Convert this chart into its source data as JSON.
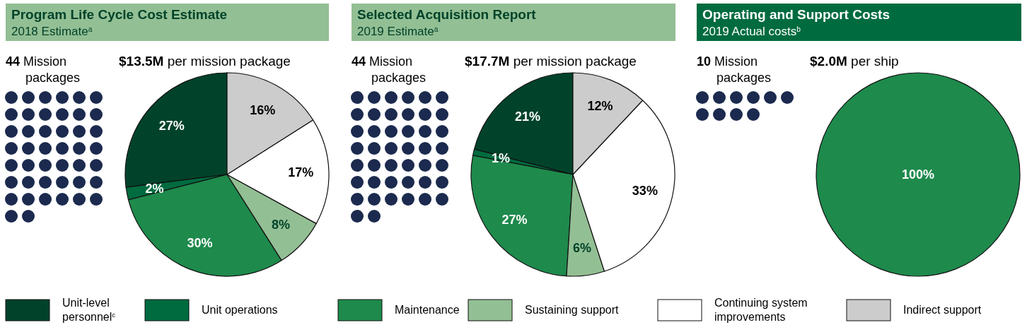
{
  "chart_data": [
    {
      "type": "pie",
      "title": "Program Life Cycle Cost Estimate",
      "subtitle": "2018 Estimate$^{a}$",
      "annotations": [
        "44 Mission packages",
        "$13.5M per mission package"
      ],
      "categories": [
        "Unit-level personnel$^{c}$",
        "Unit operations",
        "Maintenance",
        "Sustaining support",
        "Continuing system improvements",
        "Indirect support"
      ],
      "values": [
        27,
        2,
        30,
        8,
        17,
        16
      ],
      "value_labels": [
        "27%",
        "2%",
        "30%",
        "8%",
        "17%",
        "16%"
      ],
      "colors": [
        "#00432a",
        "#006b3f",
        "#1e8a4c",
        "#93bf94",
        "#ffffff",
        "#cccccc"
      ],
      "legend": "bottom"
    },
    {
      "type": "pie",
      "title": "Selected Acquisition Report",
      "subtitle": "2019 Estimate$^{a}$",
      "annotations": [
        "44 Mission packages",
        "$17.7M per mission package"
      ],
      "categories": [
        null,
        null,
        null,
        null,
        null,
        null
      ],
      "values": [
        21,
        1,
        27,
        6,
        33,
        12
      ],
      "value_labels": [
        "21%",
        "1%",
        "27%",
        "6%",
        "33%",
        "12%"
      ],
      "colors": [
        "#00432a",
        "#006b3f",
        "#1e8a4c",
        "#93bf94",
        "#ffffff",
        "#cccccc"
      ]
    },
    {
      "type": "pie",
      "title": "Operating and Support Costs",
      "subtitle": "2019 Actual costs$^{b}$",
      "annotations": [
        "10 Mission packages",
        "$2.0M per ship"
      ],
      "categories": [
        null
      ],
      "values": [
        100
      ],
      "value_labels": [
        "100%"
      ],
      "colors": [
        "#1e8a4c"
      ]
    }
  ]
}
